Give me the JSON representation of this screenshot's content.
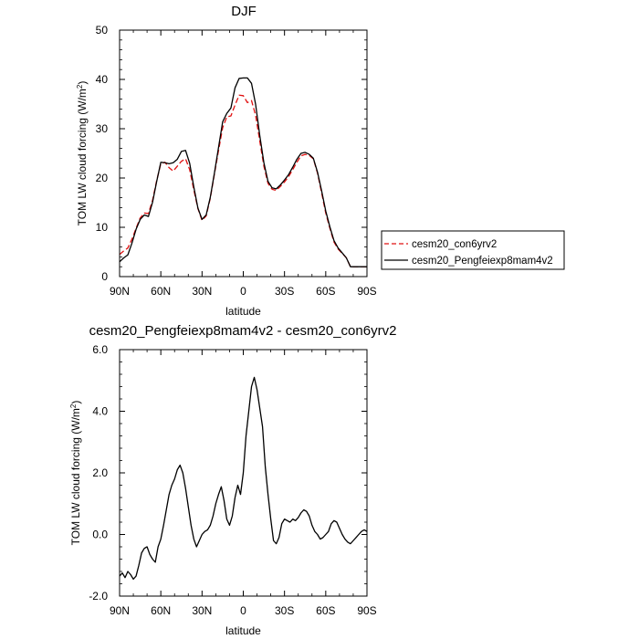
{
  "chart_data": [
    {
      "type": "line",
      "title": "DJF",
      "xlabel": "latitude",
      "ylabel": "TOM LW cloud forcing (W/m",
      "ylabel_sup": "2",
      "ylabel_close": ")",
      "xlim": [
        90,
        -90
      ],
      "ylim": [
        0,
        50
      ],
      "x_ticks": [
        90,
        60,
        30,
        0,
        -30,
        -60,
        -90
      ],
      "x_tick_labels": [
        "90N",
        "60N",
        "30N",
        "0",
        "30S",
        "60S",
        "90S"
      ],
      "y_ticks": [
        0,
        10,
        20,
        30,
        40,
        50
      ],
      "y_tick_labels": [
        "0",
        "10",
        "20",
        "30",
        "40",
        "50"
      ],
      "legend": {
        "placement": "right",
        "entries": [
          "cesm20_con6yrv2",
          "cesm20_Pengfeiexp8mam4v2"
        ]
      },
      "series": [
        {
          "name": "cesm20_con6yrv2",
          "color": "#e01010",
          "dash": "dashed",
          "x": [
            90,
            87,
            84,
            81,
            78,
            75,
            72,
            69,
            66,
            63,
            60,
            57,
            54,
            51,
            48,
            45,
            42,
            39,
            36,
            33,
            30,
            27,
            24,
            21,
            18,
            15,
            12,
            9,
            6,
            3,
            0,
            -3,
            -6,
            -9,
            -12,
            -15,
            -18,
            -21,
            -24,
            -27,
            -30,
            -33,
            -36,
            -39,
            -42,
            -45,
            -48,
            -51,
            -54,
            -57,
            -60,
            -63,
            -66,
            -69,
            -72,
            -75,
            -78,
            -81,
            -84,
            -87,
            -90
          ],
          "y": [
            4.5,
            5.2,
            5.8,
            7.6,
            9.8,
            11.9,
            12.9,
            12.8,
            15.5,
            19.5,
            22.9,
            23.2,
            22.1,
            21.4,
            22.4,
            23.4,
            23.9,
            21.7,
            17.6,
            13.8,
            11.4,
            12.3,
            15.9,
            20.8,
            25.6,
            30.2,
            32.4,
            32.6,
            34.8,
            36.8,
            36.7,
            35.3,
            35.7,
            32.7,
            27.5,
            22.4,
            18.9,
            17.7,
            17.5,
            18.3,
            19.2,
            20.3,
            21.7,
            23.2,
            24.5,
            24.8,
            24.6,
            23.9,
            21.0,
            17.0,
            12.9,
            9.8,
            7.0,
            5.6,
            4.7,
            3.8,
            2.0,
            2.0,
            2.0,
            2.0,
            2.0
          ]
        },
        {
          "name": "cesm20_Pengfeiexp8mam4v2",
          "color": "#000000",
          "dash": "solid",
          "x": [
            90,
            87,
            84,
            81,
            78,
            75,
            72,
            69,
            66,
            63,
            60,
            57,
            54,
            51,
            48,
            45,
            42,
            39,
            36,
            33,
            30,
            27,
            24,
            21,
            18,
            15,
            12,
            9,
            6,
            3,
            0,
            -3,
            -6,
            -9,
            -12,
            -15,
            -18,
            -21,
            -24,
            -27,
            -30,
            -33,
            -36,
            -39,
            -42,
            -45,
            -48,
            -51,
            -54,
            -57,
            -60,
            -63,
            -66,
            -69,
            -72,
            -75,
            -78,
            -81,
            -84,
            -87,
            -90
          ],
          "y": [
            3.0,
            3.8,
            4.4,
            6.8,
            9.6,
            11.6,
            12.5,
            12.2,
            15.1,
            19.3,
            23.2,
            23.1,
            22.9,
            23.1,
            23.8,
            25.4,
            25.6,
            23.0,
            18.2,
            13.9,
            11.6,
            12.5,
            16.1,
            21.0,
            26.2,
            31.4,
            33.1,
            34.2,
            38.3,
            40.2,
            40.3,
            40.3,
            39.2,
            34.9,
            28.6,
            23.1,
            19.3,
            18.0,
            17.8,
            18.6,
            19.6,
            20.7,
            22.2,
            23.8,
            25.0,
            25.2,
            24.8,
            24.0,
            21.2,
            17.4,
            13.3,
            10.1,
            7.3,
            5.8,
            4.8,
            3.8,
            2.0,
            2.0,
            2.0,
            2.0,
            2.0
          ]
        }
      ]
    },
    {
      "type": "line",
      "title": "cesm20_Pengfeiexp8mam4v2 - cesm20_con6yrv2",
      "xlabel": "latitude",
      "ylabel": "TOM LW cloud forcing (W/m",
      "ylabel_sup": "2",
      "ylabel_close": ")",
      "xlim": [
        90,
        -90
      ],
      "ylim": [
        -2.0,
        6.0
      ],
      "x_ticks": [
        90,
        60,
        30,
        0,
        -30,
        -60,
        -90
      ],
      "x_tick_labels": [
        "90N",
        "60N",
        "30N",
        "0",
        "30S",
        "60S",
        "90S"
      ],
      "y_ticks": [
        -2.0,
        0.0,
        2.0,
        4.0,
        6.0
      ],
      "y_tick_labels": [
        "-2.0",
        "0.0",
        "2.0",
        "4.0",
        "6.0"
      ],
      "series": [
        {
          "color": "#000000",
          "dash": "solid",
          "x": [
            90,
            88,
            86,
            84,
            82,
            80,
            78,
            76,
            74,
            72,
            70,
            68,
            66,
            64,
            62,
            60,
            58,
            56,
            54,
            52,
            50,
            48,
            46,
            44,
            42,
            40,
            38,
            36,
            34,
            32,
            30,
            28,
            26,
            24,
            22,
            20,
            18,
            16,
            14,
            12,
            10,
            8,
            6,
            4,
            2,
            0,
            -2,
            -4,
            -6,
            -8,
            -10,
            -12,
            -14,
            -16,
            -18,
            -20,
            -22,
            -24,
            -26,
            -28,
            -30,
            -32,
            -34,
            -36,
            -38,
            -40,
            -42,
            -44,
            -46,
            -48,
            -50,
            -52,
            -54,
            -56,
            -58,
            -60,
            -62,
            -64,
            -66,
            -68,
            -70,
            -72,
            -74,
            -76,
            -78,
            -80,
            -82,
            -84,
            -86,
            -88,
            -90
          ],
          "y": [
            -1.35,
            -1.25,
            -1.4,
            -1.2,
            -1.3,
            -1.45,
            -1.35,
            -1.0,
            -0.6,
            -0.45,
            -0.4,
            -0.65,
            -0.8,
            -0.9,
            -0.4,
            -0.15,
            0.3,
            0.8,
            1.3,
            1.6,
            1.8,
            2.1,
            2.25,
            2.0,
            1.5,
            0.9,
            0.3,
            -0.15,
            -0.4,
            -0.2,
            0.0,
            0.1,
            0.15,
            0.3,
            0.6,
            1.0,
            1.3,
            1.55,
            1.1,
            0.5,
            0.3,
            0.6,
            1.2,
            1.6,
            1.3,
            2.0,
            3.2,
            4.0,
            4.8,
            5.1,
            4.7,
            4.1,
            3.5,
            2.2,
            1.3,
            0.5,
            -0.2,
            -0.3,
            -0.1,
            0.35,
            0.5,
            0.45,
            0.4,
            0.5,
            0.45,
            0.55,
            0.7,
            0.8,
            0.75,
            0.6,
            0.3,
            0.1,
            0.0,
            -0.15,
            -0.1,
            0.0,
            0.1,
            0.35,
            0.45,
            0.4,
            0.2,
            0.0,
            -0.15,
            -0.25,
            -0.3,
            -0.2,
            -0.1,
            0.0,
            0.1,
            0.15,
            0.1
          ]
        }
      ]
    }
  ]
}
